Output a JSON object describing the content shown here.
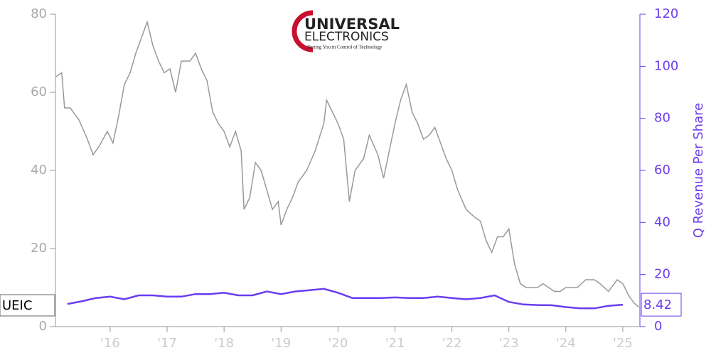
{
  "chart_data": {
    "type": "line",
    "logo": {
      "name": "UNIVERSAL",
      "sub": "ELECTRONICS",
      "tagline": "Putting You in Control of Technology"
    },
    "xlim": [
      2015.04,
      2025.3
    ],
    "xticks": [
      {
        "value": 2016,
        "label": "'16"
      },
      {
        "value": 2017,
        "label": "'17"
      },
      {
        "value": 2018,
        "label": "'18"
      },
      {
        "value": 2019,
        "label": "'19"
      },
      {
        "value": 2020,
        "label": "'20"
      },
      {
        "value": 2021,
        "label": "'21"
      },
      {
        "value": 2022,
        "label": "'22"
      },
      {
        "value": 2023,
        "label": "'23"
      },
      {
        "value": 2024,
        "label": "'24"
      },
      {
        "value": 2025,
        "label": "'25"
      }
    ],
    "ylim": [
      0,
      80
    ],
    "yticks": [
      0,
      20,
      40,
      60,
      80
    ],
    "y2lim": [
      0,
      120
    ],
    "y2ticks": [
      0,
      20,
      40,
      60,
      80,
      100,
      120
    ],
    "series": [
      {
        "name": "UEIC",
        "color": "#999999",
        "x": [
          2015.05,
          2015.15,
          2015.2,
          2015.3,
          2015.45,
          2015.6,
          2015.7,
          2015.8,
          2015.95,
          2016.05,
          2016.15,
          2016.25,
          2016.35,
          2016.45,
          2016.55,
          2016.65,
          2016.75,
          2016.85,
          2016.95,
          2017.05,
          2017.15,
          2017.25,
          2017.4,
          2017.5,
          2017.6,
          2017.7,
          2017.8,
          2017.9,
          2018.0,
          2018.1,
          2018.2,
          2018.3,
          2018.35,
          2018.45,
          2018.55,
          2018.65,
          2018.75,
          2018.85,
          2018.95,
          2019.0,
          2019.1,
          2019.2,
          2019.3,
          2019.45,
          2019.6,
          2019.75,
          2019.8,
          2019.9,
          2020.0,
          2020.1,
          2020.2,
          2020.3,
          2020.45,
          2020.55,
          2020.7,
          2020.8,
          2020.9,
          2021.0,
          2021.1,
          2021.2,
          2021.3,
          2021.4,
          2021.5,
          2021.6,
          2021.7,
          2021.8,
          2021.9,
          2022.0,
          2022.1,
          2022.25,
          2022.4,
          2022.5,
          2022.6,
          2022.7,
          2022.8,
          2022.9,
          2023.0,
          2023.1,
          2023.2,
          2023.3,
          2023.5,
          2023.6,
          2023.8,
          2023.9,
          2024.0,
          2024.2,
          2024.35,
          2024.5,
          2024.6,
          2024.75,
          2024.9,
          2025.0,
          2025.1,
          2025.2,
          2025.28
        ],
        "values": [
          64,
          65,
          56,
          56,
          53,
          48,
          44,
          46,
          50,
          47,
          54,
          62,
          65,
          70,
          74,
          78,
          72,
          68,
          65,
          66,
          60,
          68,
          68,
          70,
          66,
          63,
          55,
          52,
          50,
          46,
          50,
          45,
          30,
          33,
          42,
          40,
          35,
          30,
          32,
          26,
          30,
          33,
          37,
          40,
          45,
          52,
          58,
          55,
          52,
          48,
          32,
          40,
          43,
          49,
          44,
          38,
          45,
          52,
          58,
          62,
          55,
          52,
          48,
          49,
          51,
          47,
          43,
          40,
          35,
          30,
          28,
          27,
          22,
          19,
          23,
          23,
          25,
          16,
          11,
          10,
          10,
          11,
          9,
          9,
          10,
          10,
          12,
          12,
          11,
          9,
          12,
          11,
          8,
          6,
          5
        ]
      },
      {
        "name": "Q Revenue Per Share",
        "color": "#6a3df0",
        "axis": "y2",
        "x": [
          2015.25,
          2015.5,
          2015.75,
          2016,
          2016.25,
          2016.5,
          2016.75,
          2017,
          2017.25,
          2017.5,
          2017.75,
          2018,
          2018.25,
          2018.5,
          2018.75,
          2019,
          2019.25,
          2019.5,
          2019.75,
          2020,
          2020.25,
          2020.5,
          2020.75,
          2021,
          2021.25,
          2021.5,
          2021.75,
          2022,
          2022.25,
          2022.5,
          2022.75,
          2023,
          2023.25,
          2023.5,
          2023.75,
          2024,
          2024.25,
          2024.5,
          2024.75,
          2025
        ],
        "values": [
          8.7,
          9.7,
          11,
          11.5,
          10.5,
          12,
          12,
          11.5,
          11.5,
          12.5,
          12.5,
          13,
          12,
          12,
          13.5,
          12.5,
          13.5,
          14,
          14.5,
          13,
          11,
          11,
          11,
          11.2,
          11,
          11,
          11.5,
          11,
          10.5,
          11,
          12,
          9.5,
          8.5,
          8.3,
          8.2,
          7.5,
          7,
          7,
          8,
          8.42
        ]
      }
    ]
  }
}
